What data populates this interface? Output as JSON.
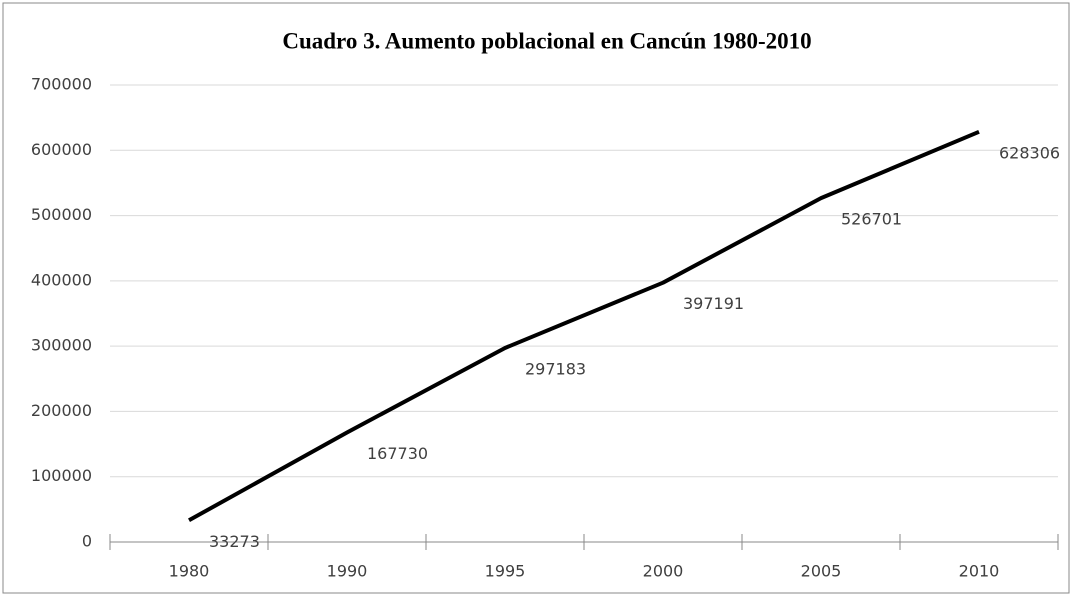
{
  "chart_data": {
    "type": "line",
    "title": "Cuadro 3. Aumento poblacional en Cancún 1980-2010",
    "categories": [
      "1980",
      "1990",
      "1995",
      "2000",
      "2005",
      "2010"
    ],
    "values": [
      33273,
      167730,
      297183,
      397191,
      526701,
      628306
    ],
    "color": "#000000",
    "ylim": [
      0,
      700000
    ],
    "yticks": [
      0,
      100000,
      200000,
      300000,
      400000,
      500000,
      600000,
      700000
    ],
    "grid": true
  }
}
